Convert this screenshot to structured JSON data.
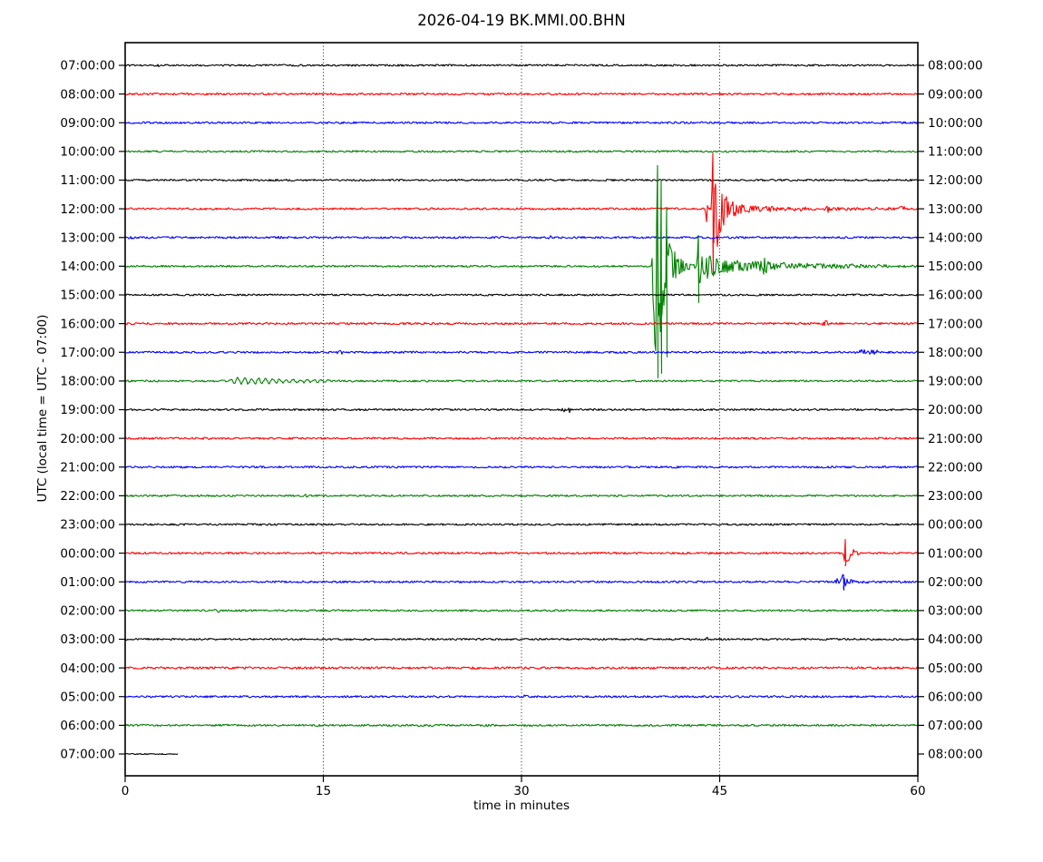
{
  "title": "2026-04-19 BK.MMI.00.BHN",
  "axes": {
    "xlabel": "time in minutes",
    "ylabel": "UTC (local time = UTC - 07:00)"
  },
  "chart_data": {
    "type": "line",
    "subtype": "seismogram_dayplot",
    "title": "2026-04-19 BK.MMI.00.BHN",
    "date": "2026-04-19",
    "station_id": "BK.MMI.00.BHN",
    "xlabel": "time in minutes",
    "ylabel": "UTC (local time = UTC - 07:00)",
    "xlim": [
      0,
      60
    ],
    "x_ticks": [
      0,
      15,
      30,
      45,
      60
    ],
    "minutes_per_line": 60,
    "utc_offset_note": "right axis = left axis + 1 hour",
    "grid": {
      "vertical_dotted_at": [
        15,
        30,
        45
      ]
    },
    "legend": "none",
    "colors": {
      "background": "#ffffff",
      "frame": "#000000",
      "grid": "#000000",
      "text": "#000000",
      "trace_color_cycle": [
        "#000000",
        "#ff0000",
        "#0000ff",
        "#008000"
      ]
    },
    "traces": [
      {
        "utc_label": "07:00:00",
        "local_label": "08:00:00",
        "color": "#000000",
        "noise": 1.0,
        "events": [
          {
            "type": "blip",
            "t": 2.5,
            "amp": 1.6,
            "width": 0.12
          }
        ]
      },
      {
        "utc_label": "08:00:00",
        "local_label": "09:00:00",
        "color": "#ff0000",
        "noise": 1.1,
        "events": []
      },
      {
        "utc_label": "09:00:00",
        "local_label": "10:00:00",
        "color": "#0000ff",
        "noise": 1.1,
        "events": []
      },
      {
        "utc_label": "10:00:00",
        "local_label": "11:00:00",
        "color": "#008000",
        "noise": 1.0,
        "events": []
      },
      {
        "utc_label": "11:00:00",
        "local_label": "12:00:00",
        "color": "#000000",
        "noise": 1.0,
        "events": [
          {
            "type": "blip",
            "t": 17.8,
            "amp": 2.6,
            "width": 0.15
          }
        ]
      },
      {
        "utc_label": "12:00:00",
        "local_label": "13:00:00",
        "color": "#ff0000",
        "noise": 1.1,
        "events": [
          {
            "type": "blip",
            "t": 44.0,
            "amp": 25,
            "width": 0.07
          },
          {
            "type": "quake",
            "start": 44.35,
            "attack": 0.15,
            "peak": 70,
            "decay": 0.5
          },
          {
            "type": "quake",
            "start": 44.6,
            "attack": 0,
            "peak": 6,
            "decay": 2.5
          },
          {
            "type": "quake",
            "start": 44.6,
            "attack": 0,
            "peak": 2.5,
            "decay": 8
          },
          {
            "type": "spike",
            "t": 44.5,
            "up": 61,
            "down": 74
          },
          {
            "type": "blip",
            "t": 53.2,
            "amp": 3.5,
            "width": 0.2
          },
          {
            "type": "blip",
            "t": 58.8,
            "amp": 4,
            "width": 0.18
          }
        ]
      },
      {
        "utc_label": "13:00:00",
        "local_label": "14:00:00",
        "color": "#0000ff",
        "noise": 1.1,
        "events": [
          {
            "type": "blip",
            "t": 0.4,
            "amp": 3,
            "width": 0.2
          },
          {
            "type": "blip",
            "t": 11.5,
            "amp": 2.6,
            "width": 0.25
          },
          {
            "type": "blip",
            "t": 32.2,
            "amp": 2.6,
            "width": 0.15
          }
        ]
      },
      {
        "utc_label": "14:00:00",
        "local_label": "15:00:00",
        "color": "#008000",
        "noise": 1.0,
        "events": [
          {
            "type": "quake",
            "start": 39.85,
            "attack": 0.3,
            "peak": 115,
            "decay": 0.75
          },
          {
            "type": "quake",
            "start": 43.25,
            "attack": 0.12,
            "peak": 22,
            "decay": 0.5
          },
          {
            "type": "quake",
            "start": 44.0,
            "attack": 0,
            "peak": 6,
            "decay": 4
          },
          {
            "type": "quake",
            "start": 44.0,
            "attack": 0,
            "peak": 3,
            "decay": 12
          },
          {
            "type": "spike",
            "t": 40.3,
            "up": 111,
            "down": 123
          },
          {
            "type": "spike",
            "t": 40.6,
            "up": 95,
            "down": 118
          },
          {
            "type": "spike",
            "t": 41.05,
            "up": 65,
            "down": 100
          },
          {
            "type": "spike",
            "t": 43.4,
            "up": 34,
            "down": 40
          },
          {
            "type": "blip",
            "t": 48.4,
            "amp": 5,
            "width": 0.3
          }
        ]
      },
      {
        "utc_label": "15:00:00",
        "local_label": "16:00:00",
        "color": "#000000",
        "noise": 1.0,
        "events": []
      },
      {
        "utc_label": "16:00:00",
        "local_label": "17:00:00",
        "color": "#ff0000",
        "noise": 1.1,
        "events": [
          {
            "type": "blip",
            "t": 53.0,
            "amp": 4,
            "width": 0.2
          }
        ]
      },
      {
        "utc_label": "17:00:00",
        "local_label": "18:00:00",
        "color": "#0000ff",
        "noise": 1.1,
        "events": [
          {
            "type": "blip",
            "t": 16.3,
            "amp": 2.6,
            "width": 0.2
          },
          {
            "type": "blip",
            "t": 55.8,
            "amp": 2.2,
            "width": 0.5
          },
          {
            "type": "blip",
            "t": 56.8,
            "amp": 2.2,
            "width": 0.4
          }
        ]
      },
      {
        "utc_label": "18:00:00",
        "local_label": "19:00:00",
        "color": "#008000",
        "noise": 1.0,
        "events": [
          {
            "type": "wiggle",
            "start": 7.6,
            "end": 15.5,
            "amp": 3.6,
            "freq": 1.9
          }
        ]
      },
      {
        "utc_label": "19:00:00",
        "local_label": "20:00:00",
        "color": "#000000",
        "noise": 1.0,
        "events": [
          {
            "type": "blip",
            "t": 33.2,
            "amp": 4,
            "width": 0.15
          },
          {
            "type": "blip",
            "t": 33.6,
            "amp": 3,
            "width": 0.12
          }
        ]
      },
      {
        "utc_label": "20:00:00",
        "local_label": "21:00:00",
        "color": "#ff0000",
        "noise": 1.1,
        "events": []
      },
      {
        "utc_label": "21:00:00",
        "local_label": "22:00:00",
        "color": "#0000ff",
        "noise": 1.1,
        "events": []
      },
      {
        "utc_label": "22:00:00",
        "local_label": "23:00:00",
        "color": "#008000",
        "noise": 1.0,
        "events": [
          {
            "type": "blip",
            "t": 13.8,
            "amp": 2,
            "width": 0.2
          }
        ]
      },
      {
        "utc_label": "23:00:00",
        "local_label": "00:00:00",
        "color": "#000000",
        "noise": 1.0,
        "events": []
      },
      {
        "utc_label": "00:00:00",
        "local_label": "01:00:00",
        "color": "#ff0000",
        "noise": 1.1,
        "events": [
          {
            "type": "quake",
            "start": 54.35,
            "attack": 0.1,
            "peak": 16,
            "decay": 0.3
          },
          {
            "type": "quake",
            "start": 54.5,
            "attack": 0,
            "peak": 3,
            "decay": 1
          },
          {
            "type": "spike",
            "t": 54.55,
            "up": 15,
            "down": 13
          }
        ]
      },
      {
        "utc_label": "01:00:00",
        "local_label": "02:00:00",
        "color": "#0000ff",
        "noise": 1.1,
        "events": [
          {
            "type": "blip",
            "t": 53.9,
            "amp": 3,
            "width": 0.2
          },
          {
            "type": "quake",
            "start": 54.1,
            "attack": 0.15,
            "peak": 8,
            "decay": 0.7
          },
          {
            "type": "spike",
            "t": 54.4,
            "up": 8,
            "down": 9
          }
        ]
      },
      {
        "utc_label": "02:00:00",
        "local_label": "03:00:00",
        "color": "#008000",
        "noise": 1.0,
        "events": [
          {
            "type": "blip",
            "t": 7.0,
            "amp": 2,
            "width": 0.2
          }
        ]
      },
      {
        "utc_label": "03:00:00",
        "local_label": "04:00:00",
        "color": "#000000",
        "noise": 1.0,
        "events": [
          {
            "type": "blip",
            "t": 44.0,
            "amp": 2,
            "width": 0.15
          }
        ]
      },
      {
        "utc_label": "04:00:00",
        "local_label": "05:00:00",
        "color": "#ff0000",
        "noise": 1.25,
        "events": []
      },
      {
        "utc_label": "05:00:00",
        "local_label": "06:00:00",
        "color": "#0000ff",
        "noise": 1.1,
        "events": [
          {
            "type": "blip",
            "t": 30.2,
            "amp": 1.8,
            "width": 0.2
          }
        ]
      },
      {
        "utc_label": "06:00:00",
        "local_label": "07:00:00",
        "color": "#008000",
        "noise": 1.1,
        "events": []
      },
      {
        "utc_label": "07:00:00",
        "local_label": "08:00:00",
        "color": "#000000",
        "noise": 0.6,
        "extent": [
          0,
          4.0
        ],
        "events": []
      }
    ]
  }
}
